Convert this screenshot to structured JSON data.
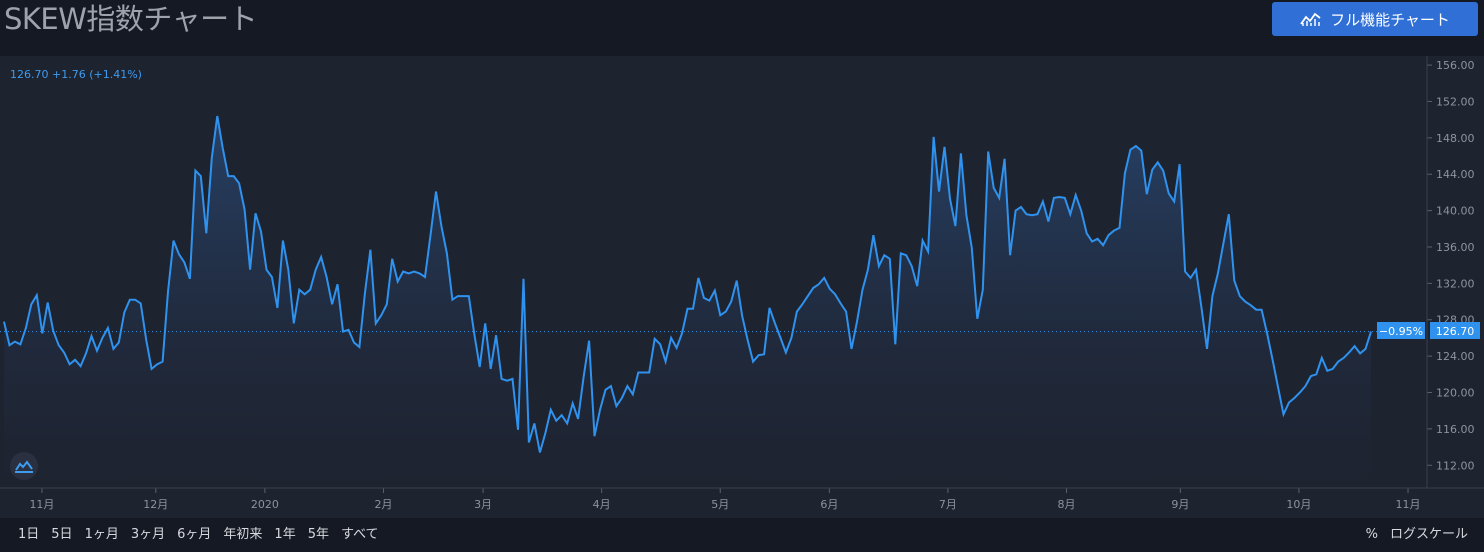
{
  "header": {
    "title": "SKEW指数チャート",
    "full_chart_label": "フル機能チャート",
    "full_chart_icon": "chart-line-icon"
  },
  "legend": {
    "value": "126.70",
    "change": "+1.76",
    "change_pct": "(+1.41%)"
  },
  "price_label": {
    "pct": "−0.95%",
    "value": "126.70"
  },
  "colors": {
    "line": "#2f92ee",
    "accent": "#2f6fd6",
    "background": "#1e2330"
  },
  "toolbar": {
    "ranges": [
      "1日",
      "5日",
      "1ヶ月",
      "3ヶ月",
      "6ヶ月",
      "年初来",
      "1年",
      "5年",
      "すべて"
    ],
    "percent_label": "%",
    "log_scale_label": "ログスケール"
  },
  "chart_data": {
    "type": "area",
    "title": "SKEW指数チャート",
    "y_ticks": [
      112,
      116,
      120,
      124,
      128,
      132,
      136,
      140,
      144,
      148,
      152,
      156
    ],
    "y_tick_labels": [
      "112.00",
      "116.00",
      "120.00",
      "124.00",
      "128.00",
      "132.00",
      "136.00",
      "140.00",
      "144.00",
      "148.00",
      "152.00",
      "156.00"
    ],
    "ylim": [
      109.5,
      157
    ],
    "x_tick_labels": [
      "11月",
      "12月",
      "2020",
      "2月",
      "3月",
      "4月",
      "5月",
      "6月",
      "7月",
      "8月",
      "9月",
      "10月",
      "11月"
    ],
    "x_tick_positions": [
      20,
      44,
      67,
      92,
      113,
      138,
      163,
      186,
      211,
      236,
      260,
      285,
      308
    ],
    "xlim": [
      12,
      312
    ],
    "last_value": 126.7,
    "series": [
      {
        "values": [
          127.8,
          125.2,
          125.6,
          125.3,
          127.1,
          129.7,
          130.7,
          126.5,
          129.9,
          126.8,
          125.2,
          124.4,
          123.1,
          123.6,
          122.9,
          124.3,
          126.2,
          124.6,
          126.0,
          127.1,
          124.8,
          125.5,
          128.8,
          130.2,
          130.2,
          129.8,
          125.8,
          122.6,
          123.1,
          123.4,
          131.1,
          136.7,
          135.2,
          134.3,
          132.5,
          144.4,
          143.8,
          137.5,
          145.8,
          150.4,
          146.9,
          143.8,
          143.8,
          143.0,
          140.1,
          133.5,
          139.7,
          137.7,
          133.5,
          132.7,
          129.3,
          136.7,
          133.5,
          127.6,
          131.3,
          130.8,
          131.3,
          133.5,
          134.9,
          132.7,
          129.7,
          131.9,
          126.7,
          126.9,
          125.5,
          125.0,
          130.9,
          135.7,
          127.6,
          128.5,
          129.7,
          134.7,
          132.2,
          133.3,
          133.1,
          133.3,
          133.1,
          132.7,
          137.3,
          142.1,
          138.3,
          135.3,
          130.2,
          130.6,
          130.6,
          130.6,
          126.5,
          122.8,
          127.6,
          122.6,
          126.3,
          121.5,
          121.3,
          121.5,
          115.9,
          132.5,
          114.5,
          116.6,
          113.4,
          115.5,
          118.1,
          116.9,
          117.5,
          116.6,
          118.8,
          117.1,
          121.7,
          125.7,
          115.2,
          118.1,
          120.3,
          120.7,
          118.5,
          119.4,
          120.7,
          119.8,
          122.2,
          122.2,
          122.2,
          125.9,
          125.3,
          123.4,
          126.0,
          124.9,
          126.5,
          129.2,
          129.2,
          132.6,
          130.4,
          130.1,
          131.2,
          128.5,
          128.9,
          130.0,
          132.3,
          128.4,
          125.8,
          123.4,
          124.1,
          124.2,
          129.3,
          127.6,
          126.0,
          124.4,
          126.0,
          128.9,
          129.7,
          130.6,
          131.5,
          131.9,
          132.6,
          131.4,
          130.8,
          129.8,
          128.9,
          124.8,
          127.8,
          131.3,
          133.5,
          137.3,
          133.9,
          135.1,
          134.7,
          125.3,
          135.3,
          135.1,
          133.9,
          131.7,
          136.7,
          135.5,
          148.1,
          142.1,
          147.0,
          141.3,
          138.3,
          146.3,
          139.5,
          135.9,
          128.1,
          131.3,
          146.5,
          142.5,
          141.4,
          145.7,
          135.1,
          140.0,
          140.4,
          139.6,
          139.5,
          139.6,
          141.0,
          138.8,
          141.4,
          141.5,
          141.4,
          139.6,
          141.7,
          140.0,
          137.5,
          136.6,
          136.9,
          136.2,
          137.3,
          137.8,
          138.1,
          144.1,
          146.7,
          147.1,
          146.6,
          141.8,
          144.5,
          145.3,
          144.4,
          141.9,
          141.0,
          145.1,
          133.3,
          132.6,
          133.5,
          129.3,
          124.8,
          130.6,
          133.1,
          136.4,
          139.6,
          132.3,
          130.6,
          130.0,
          129.6,
          129.1,
          129.1,
          126.5,
          123.6,
          120.6,
          117.6,
          118.9,
          119.4,
          120.0,
          120.7,
          121.8,
          122.0,
          123.8,
          122.4,
          122.6,
          123.4,
          123.8,
          124.4,
          125.1,
          124.3,
          124.8,
          126.7
        ]
      }
    ]
  }
}
